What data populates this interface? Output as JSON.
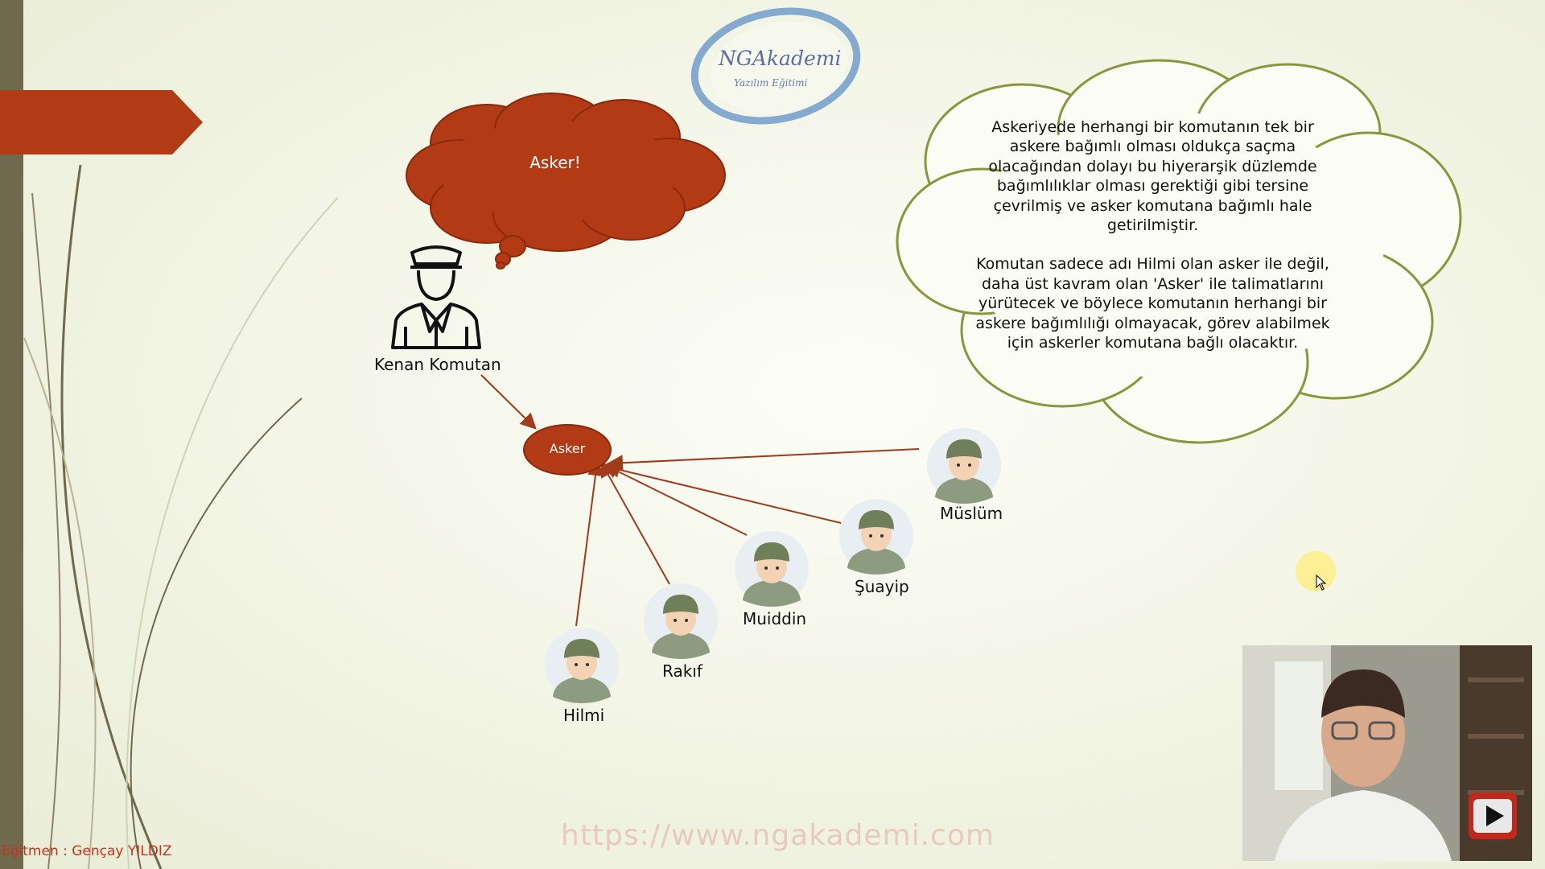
{
  "slide": {
    "logo": {
      "title": "NGAkademi",
      "subtitle": "Yazılım Eğitimi"
    },
    "thought_bubble": {
      "text": "Asker!"
    },
    "commander": {
      "name": "Kenan Komutan",
      "icon": "commander-icon"
    },
    "abstraction_node": {
      "label": "Asker"
    },
    "soldiers": [
      {
        "name": "Hilmi",
        "icon": "soldier-icon"
      },
      {
        "name": "Rakıf",
        "icon": "soldier-icon"
      },
      {
        "name": "Muiddin",
        "icon": "soldier-icon"
      },
      {
        "name": "Şuayip",
        "icon": "soldier-icon"
      },
      {
        "name": "Müslüm",
        "icon": "soldier-icon"
      }
    ],
    "explanation": {
      "paragraph1": "Askeriyede herhangi bir komutanın tek bir askere bağımlı olması oldukça saçma olacağından dolayı bu hiyerarşik düzlemde bağımlılıklar olması gerektiği gibi tersine çevrilmiş ve asker komutana bağımlı hale getirilmiştir.",
      "paragraph2": "Komutan sadece adı Hilmi olan asker ile değil, daha üst kavram olan 'Asker' ile talimatlarını yürütecek ve böylece komutanın herhangi bir askere bağımlılığı olmayacak, görev alabilmek için askerler komutana bağlı olacaktır."
    },
    "watermark": "https://www.ngakademi.com",
    "trainer": "Eğitmen : Gençay YILDIZ"
  },
  "colors": {
    "accent": "#b23a14",
    "cloud_border": "#8a963c",
    "logo_blue": "#7fa6c9",
    "strip": "#6f6a4d"
  },
  "overlay": {
    "webcam": "webcam-feed",
    "play_icon": "youtube-play-icon"
  }
}
